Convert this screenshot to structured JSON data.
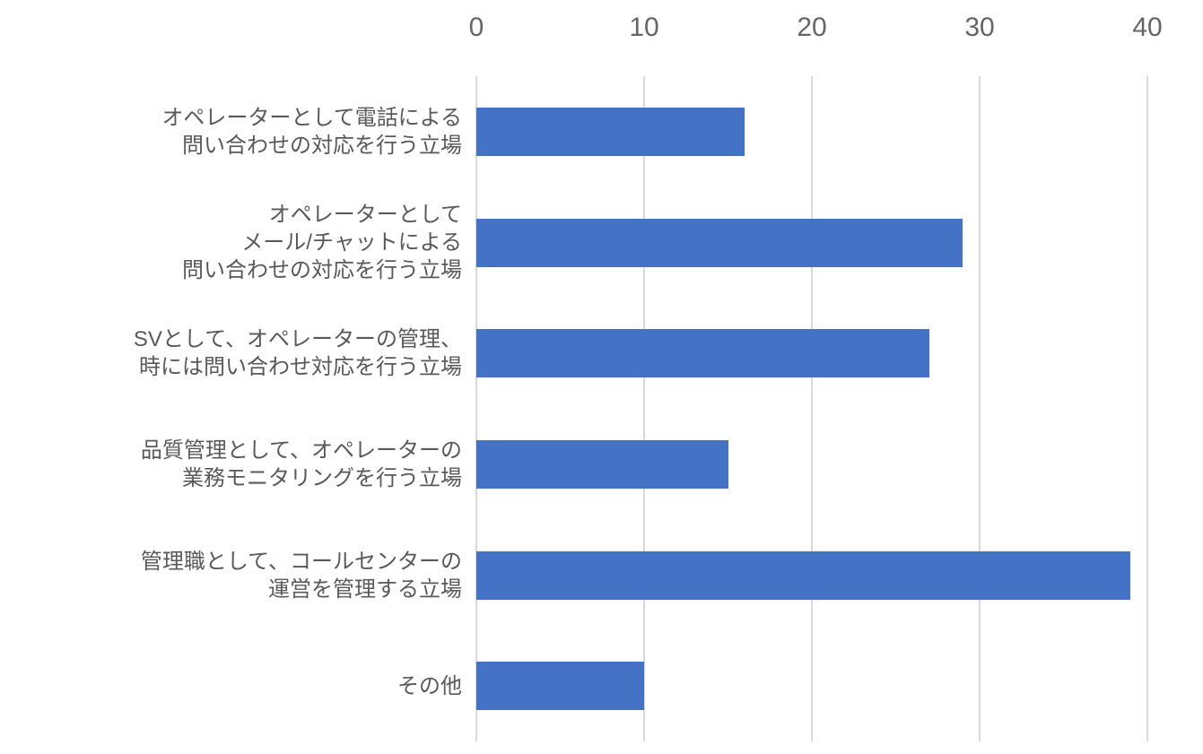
{
  "chart_data": {
    "type": "bar",
    "orientation": "horizontal",
    "title": "",
    "xlabel": "",
    "ylabel": "",
    "categories": [
      "オペレーターとして電話による\n問い合わせの対応を行う立場",
      "オペレーターとして\nメール/チャットによる\n問い合わせの対応を行う立場",
      "SVとして、オペレーターの管理、\n時には問い合わせ対応を行う立場",
      "品質管理として、オペレーターの\n業務モニタリングを行う立場",
      "管理職として、コールセンターの\n運営を管理する立場",
      "その他"
    ],
    "values": [
      16,
      29,
      27,
      15,
      39,
      10
    ],
    "xlim": [
      0,
      40
    ],
    "x_ticks": [
      "0",
      "10",
      "20",
      "30",
      "40"
    ],
    "grid": true,
    "legend": "none",
    "axis_position": "top",
    "bar_color": "#4472C4",
    "gridline_color": "#d9d9d9",
    "tick_label_color": "#666666",
    "category_label_color": "#595959",
    "background_color": "#ffffff"
  }
}
